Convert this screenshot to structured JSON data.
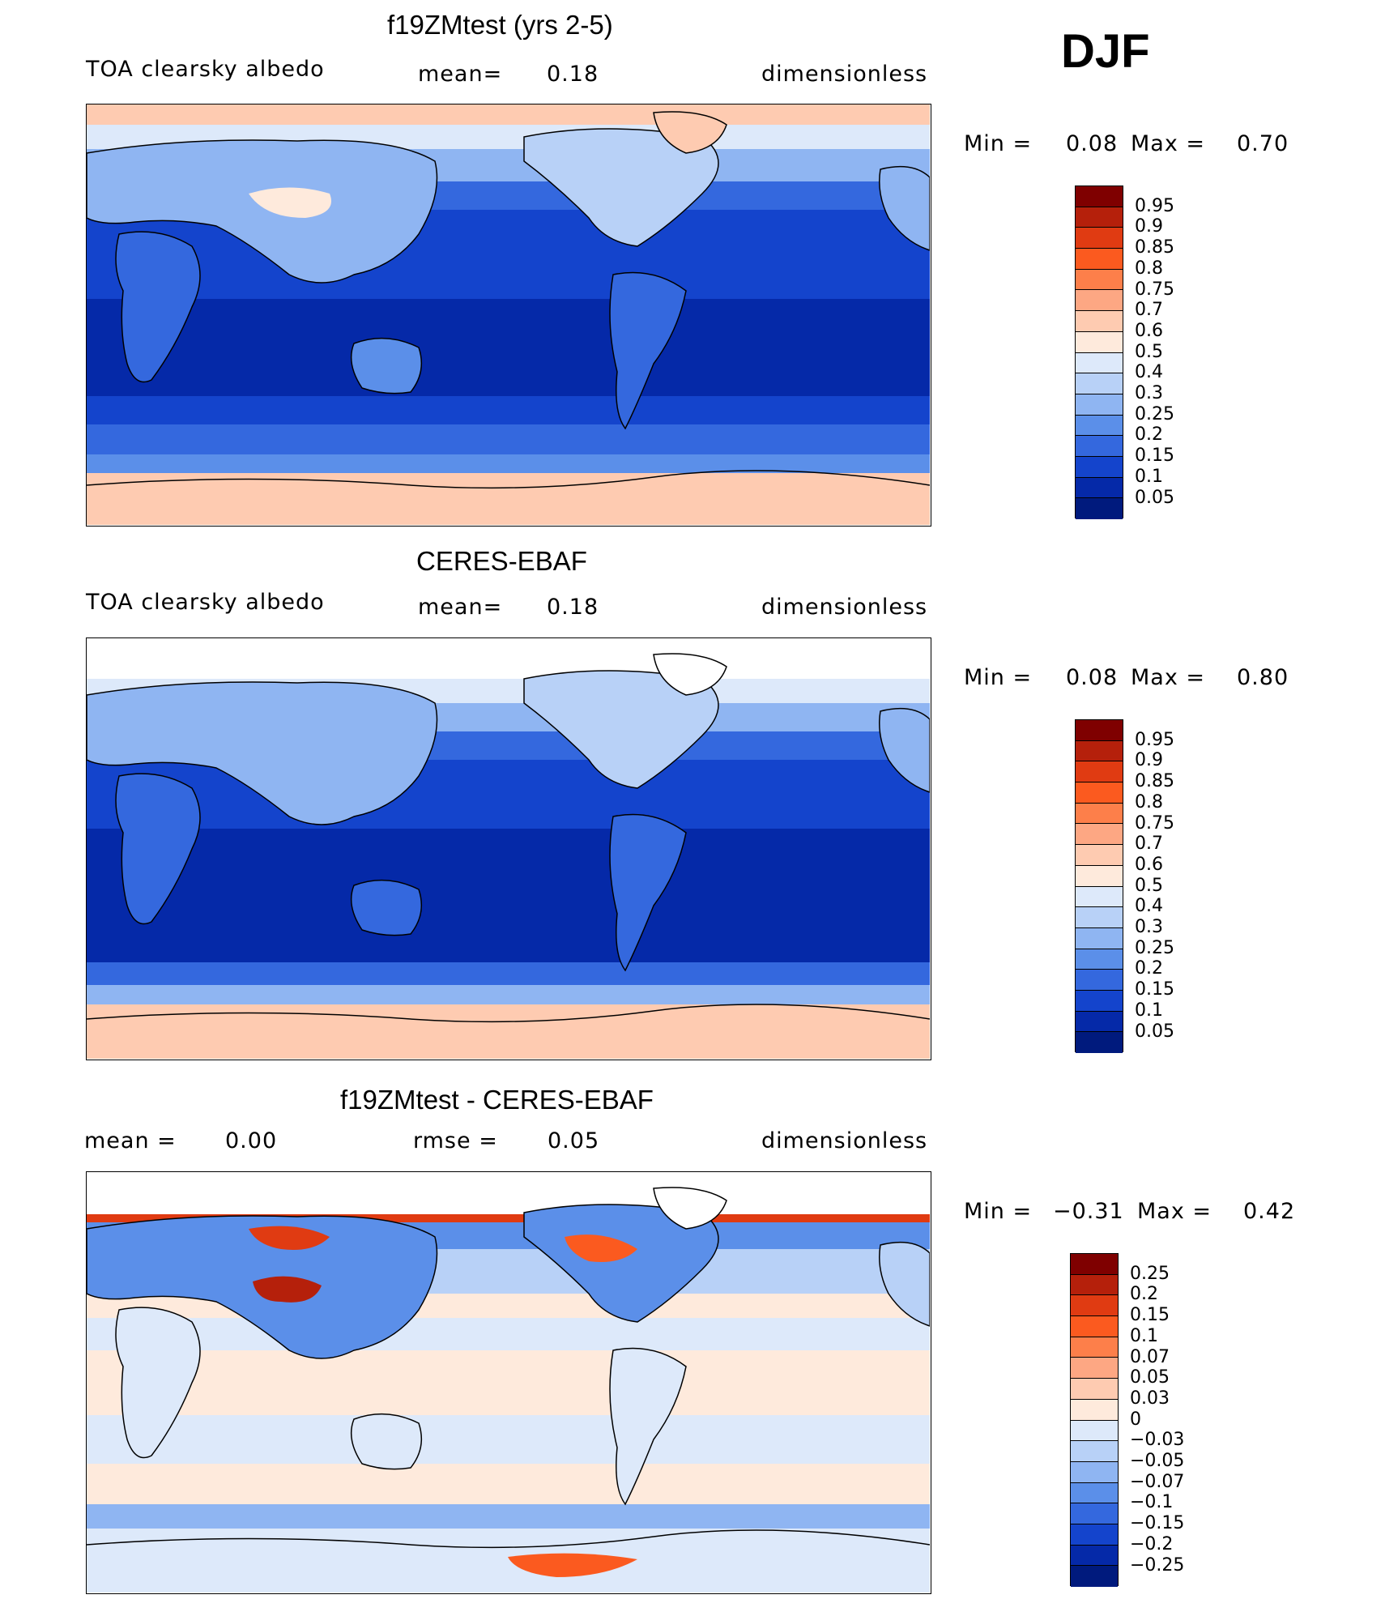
{
  "season": "DJF",
  "panels": [
    {
      "title": "f19ZMtest (yrs 2-5)",
      "left_label": "TOA clearsky albedo",
      "center_label": "mean=",
      "center_value": "0.18",
      "units": "dimensionless",
      "min_label": "Min =",
      "min_value": "0.08",
      "max_label": "Max =",
      "max_value": "0.70",
      "colorbar_levels": [
        "0.95",
        "0.9",
        "0.85",
        "0.8",
        "0.75",
        "0.7",
        "0.6",
        "0.5",
        "0.4",
        "0.3",
        "0.25",
        "0.2",
        "0.15",
        "0.1",
        "0.05"
      ]
    },
    {
      "title": "CERES-EBAF",
      "left_label": "TOA clearsky albedo",
      "center_label": "mean=",
      "center_value": "0.18",
      "units": "dimensionless",
      "min_label": "Min =",
      "min_value": "0.08",
      "max_label": "Max =",
      "max_value": "0.80",
      "colorbar_levels": [
        "0.95",
        "0.9",
        "0.85",
        "0.8",
        "0.75",
        "0.7",
        "0.6",
        "0.5",
        "0.4",
        "0.3",
        "0.25",
        "0.2",
        "0.15",
        "0.1",
        "0.05"
      ]
    },
    {
      "title": "f19ZMtest - CERES-EBAF",
      "left_label": "mean =",
      "left_value": "0.00",
      "center_label": "rmse =",
      "center_value": "0.05",
      "units": "dimensionless",
      "min_label": "Min =",
      "min_value": "−0.31",
      "max_label": "Max =",
      "max_value": "0.42",
      "colorbar_levels": [
        "0.25",
        "0.2",
        "0.15",
        "0.1",
        "0.07",
        "0.05",
        "0.03",
        "0",
        "−0.03",
        "−0.05",
        "−0.07",
        "−0.1",
        "−0.15",
        "−0.2",
        "−0.25"
      ]
    }
  ],
  "colors": {
    "abs_scale": [
      "#7f0000",
      "#b5200b",
      "#e03b12",
      "#fb5a1f",
      "#fd7f4a",
      "#fda783",
      "#fecbb1",
      "#feeadc",
      "#dde9fa",
      "#b8d1f7",
      "#8fb5f2",
      "#5b8fe9",
      "#3468de",
      "#1444cc",
      "#0529a8",
      "#001a7d"
    ],
    "diff_scale": [
      "#7f0000",
      "#b5200b",
      "#e03b12",
      "#fb5a1f",
      "#fd7f4a",
      "#fda783",
      "#fecbb1",
      "#feeadc",
      "#dde9fa",
      "#b8d1f7",
      "#8fb5f2",
      "#5b8fe9",
      "#3468de",
      "#1444cc",
      "#0529a8",
      "#001a7d"
    ]
  },
  "chart_data": [
    {
      "type": "heatmap",
      "title": "f19ZMtest (yrs 2-5)",
      "variable": "TOA clearsky albedo",
      "mean": 0.18,
      "min": 0.08,
      "max": 0.7,
      "units": "dimensionless",
      "contour_levels": [
        0.05,
        0.1,
        0.15,
        0.2,
        0.25,
        0.3,
        0.4,
        0.5,
        0.6,
        0.7,
        0.75,
        0.8,
        0.85,
        0.9,
        0.95
      ]
    },
    {
      "type": "heatmap",
      "title": "CERES-EBAF",
      "variable": "TOA clearsky albedo",
      "mean": 0.18,
      "min": 0.08,
      "max": 0.8,
      "units": "dimensionless",
      "contour_levels": [
        0.05,
        0.1,
        0.15,
        0.2,
        0.25,
        0.3,
        0.4,
        0.5,
        0.6,
        0.7,
        0.75,
        0.8,
        0.85,
        0.9,
        0.95
      ]
    },
    {
      "type": "heatmap",
      "title": "f19ZMtest - CERES-EBAF",
      "mean": 0.0,
      "rmse": 0.05,
      "min": -0.31,
      "max": 0.42,
      "units": "dimensionless",
      "contour_levels": [
        -0.25,
        -0.2,
        -0.15,
        -0.1,
        -0.07,
        -0.05,
        -0.03,
        0,
        0.03,
        0.05,
        0.07,
        0.1,
        0.15,
        0.2,
        0.25
      ]
    }
  ]
}
